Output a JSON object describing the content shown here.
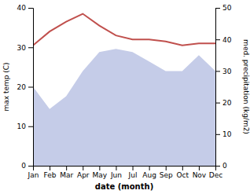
{
  "chart_data": {
    "type": "line",
    "categories": [
      "Jan",
      "Feb",
      "Mar",
      "Apr",
      "May",
      "Jun",
      "Jul",
      "Aug",
      "Sep",
      "Oct",
      "Nov",
      "Dec"
    ],
    "series": [
      {
        "type": "area",
        "color": "#c5cce8",
        "axis": "y2",
        "values": [
          25,
          18,
          22,
          30,
          36,
          37,
          36,
          33,
          30,
          30,
          35,
          30
        ]
      },
      {
        "type": "line",
        "color": "#c0504d",
        "values": [
          30.5,
          34.0,
          36.5,
          38.5,
          35.5,
          33.0,
          32.0,
          32.0,
          31.5,
          30.5,
          31.0,
          31.0
        ]
      }
    ],
    "x_label": "date (month)",
    "y_label": "max temp (C)",
    "y2_label": "med. precipitation (kg/m2)",
    "ylim": [
      0,
      40
    ],
    "yticks": [
      0,
      10,
      20,
      30,
      40
    ],
    "y2lim": [
      0,
      50
    ],
    "y2ticks": [
      0,
      10,
      20,
      30,
      40,
      50
    ],
    "grid": false
  }
}
